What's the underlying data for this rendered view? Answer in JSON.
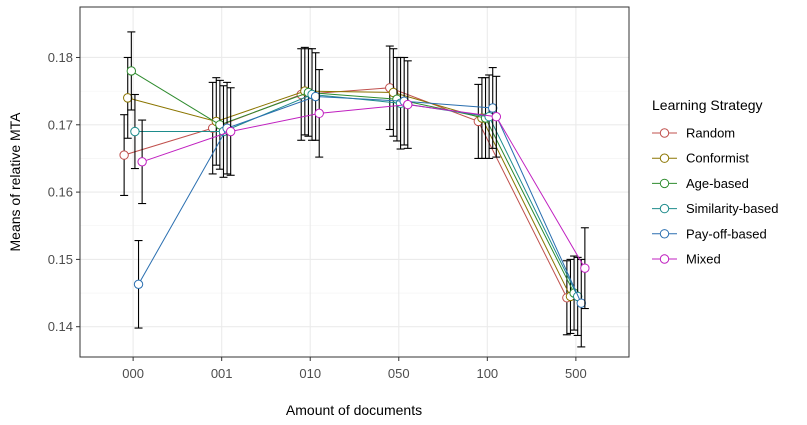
{
  "chart_data": {
    "type": "line",
    "xlabel": "Amount of documents",
    "ylabel": "Means of relative MTA",
    "categories": [
      "000",
      "001",
      "010",
      "050",
      "100",
      "500"
    ],
    "yticks": [
      0.14,
      0.15,
      0.16,
      0.17,
      0.18
    ],
    "ylim": [
      0.1355,
      0.1875
    ],
    "grid": true,
    "legend": {
      "title": "Learning Strategy",
      "position": "right"
    },
    "series": [
      {
        "name": "Random",
        "color": "#c0504d",
        "values": [
          0.1655,
          0.1695,
          0.1745,
          0.1755,
          0.1705,
          0.1443
        ],
        "err": [
          0.006,
          0.0068,
          0.0068,
          0.0062,
          0.0055,
          0.0055
        ]
      },
      {
        "name": "Conformist",
        "color": "#8b7500",
        "values": [
          0.174,
          0.1705,
          0.175,
          0.1748,
          0.171,
          0.1445
        ],
        "err": [
          0.006,
          0.0065,
          0.0065,
          0.0065,
          0.006,
          0.0055
        ]
      },
      {
        "name": "Age-based",
        "color": "#2e8b2e",
        "values": [
          0.178,
          0.17,
          0.1748,
          0.1738,
          0.171,
          0.145
        ],
        "err": [
          0.0058,
          0.0066,
          0.0065,
          0.0062,
          0.006,
          0.0055
        ]
      },
      {
        "name": "Similarity-based",
        "color": "#1e8c8c",
        "values": [
          0.169,
          0.169,
          0.1745,
          0.1732,
          0.1712,
          0.1445
        ],
        "err": [
          0.0055,
          0.0068,
          0.0068,
          0.0068,
          0.0062,
          0.0058
        ]
      },
      {
        "name": "Pay-off-based",
        "color": "#2a6fb0",
        "values": [
          0.1463,
          0.1695,
          0.1742,
          0.1735,
          0.1725,
          0.1435
        ],
        "err": [
          0.0065,
          0.0068,
          0.0065,
          0.0065,
          0.006,
          0.0065
        ]
      },
      {
        "name": "Mixed",
        "color": "#c020c0",
        "values": [
          0.1645,
          0.169,
          0.1717,
          0.173,
          0.1712,
          0.1487
        ],
        "err": [
          0.0062,
          0.0065,
          0.0065,
          0.0065,
          0.006,
          0.006
        ]
      }
    ]
  }
}
